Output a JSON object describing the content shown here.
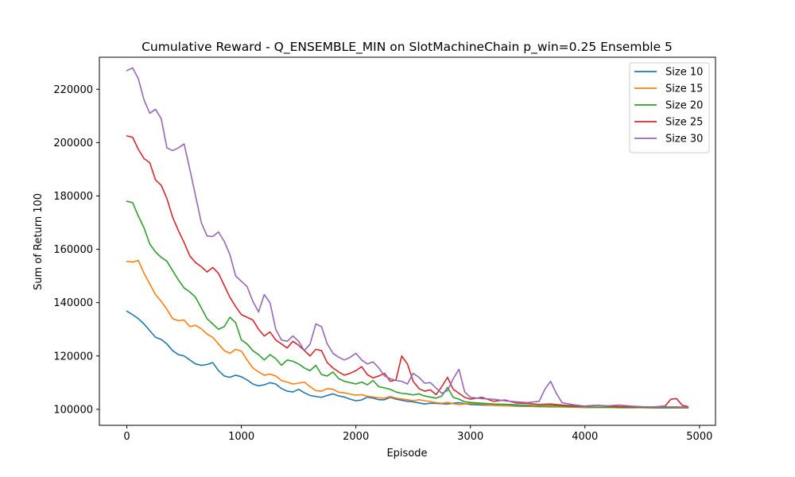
{
  "chart_data": {
    "type": "line",
    "title": "Cumulative Reward - Q_ENSEMBLE_MIN on SlotMachineChain p_win=0.25 Ensemble 5",
    "xlabel": "Episode",
    "ylabel": "Sum of Return 100",
    "xlim": [
      -240,
      5140
    ],
    "ylim": [
      94000,
      232000
    ],
    "xticks": [
      0,
      1000,
      2000,
      3000,
      4000,
      5000
    ],
    "yticks": [
      100000,
      120000,
      140000,
      160000,
      180000,
      200000,
      220000
    ],
    "grid": false,
    "legend_position": "top-right",
    "series": [
      {
        "name": "Size 10",
        "color": "#1f77b4",
        "x": [
          0,
          50,
          100,
          150,
          200,
          250,
          300,
          350,
          400,
          450,
          500,
          550,
          600,
          650,
          700,
          750,
          800,
          850,
          900,
          950,
          1000,
          1050,
          1100,
          1150,
          1200,
          1250,
          1300,
          1350,
          1400,
          1450,
          1500,
          1550,
          1600,
          1650,
          1700,
          1750,
          1800,
          1850,
          1900,
          1950,
          2000,
          2050,
          2100,
          2150,
          2200,
          2250,
          2300,
          2350,
          2400,
          2450,
          2500,
          2550,
          2600,
          2650,
          2700,
          2750,
          2800,
          2850,
          2900,
          2950,
          3000,
          3100,
          3200,
          3300,
          3400,
          3500,
          3600,
          3700,
          3800,
          3900,
          4000,
          4100,
          4200,
          4300,
          4400,
          4500,
          4600,
          4700,
          4800,
          4900
        ],
        "values": [
          136800,
          135500,
          134000,
          132000,
          129500,
          127000,
          126200,
          124500,
          122000,
          120500,
          120000,
          118500,
          117000,
          116500,
          116800,
          117500,
          114500,
          112500,
          112000,
          112800,
          112200,
          111000,
          109500,
          108800,
          109200,
          110000,
          109500,
          107800,
          106800,
          106500,
          107500,
          106200,
          105200,
          104800,
          104500,
          105200,
          105800,
          105000,
          104600,
          103800,
          103200,
          103500,
          104600,
          104200,
          103600,
          103600,
          104500,
          103800,
          103400,
          103000,
          102800,
          102400,
          102000,
          102300,
          102200,
          102100,
          102000,
          102300,
          102500,
          102100,
          101800,
          101600,
          101500,
          101400,
          101200,
          101100,
          101000,
          100900,
          100900,
          100800,
          100700,
          100700,
          100700,
          100600,
          100600,
          100700,
          100600,
          100500,
          100600,
          100600
        ]
      },
      {
        "name": "Size 15",
        "color": "#ff7f0e",
        "x": [
          0,
          50,
          100,
          150,
          200,
          250,
          300,
          350,
          400,
          450,
          500,
          550,
          600,
          650,
          700,
          750,
          800,
          850,
          900,
          950,
          1000,
          1050,
          1100,
          1150,
          1200,
          1250,
          1300,
          1350,
          1400,
          1450,
          1500,
          1550,
          1600,
          1650,
          1700,
          1750,
          1800,
          1850,
          1900,
          1950,
          2000,
          2050,
          2100,
          2150,
          2200,
          2250,
          2300,
          2350,
          2400,
          2450,
          2500,
          2550,
          2600,
          2650,
          2700,
          2750,
          2800,
          2850,
          2900,
          2950,
          3000,
          3100,
          3200,
          3300,
          3400,
          3500,
          3600,
          3700,
          3800,
          3900,
          4000,
          4100,
          4200,
          4300,
          4400,
          4500,
          4600,
          4700,
          4800,
          4900
        ],
        "values": [
          155500,
          155200,
          155800,
          151000,
          147000,
          143000,
          140500,
          137500,
          134000,
          133200,
          133500,
          131000,
          131500,
          130200,
          128200,
          127000,
          124500,
          122000,
          121000,
          122500,
          121800,
          118500,
          115500,
          114000,
          112800,
          113200,
          112500,
          110800,
          110200,
          109500,
          109800,
          110200,
          108500,
          107000,
          106800,
          107800,
          107500,
          106400,
          106200,
          105700,
          105300,
          105500,
          104900,
          104600,
          104300,
          104200,
          104800,
          104200,
          103900,
          103600,
          103200,
          103600,
          103200,
          102900,
          102500,
          102300,
          102600,
          102100,
          101800,
          102000,
          102200,
          102000,
          101500,
          101300,
          101500,
          101200,
          101000,
          101000,
          100900,
          100800,
          100800,
          100700,
          100700,
          100600,
          100600,
          100600,
          100500,
          100600,
          100500,
          100500
        ]
      },
      {
        "name": "Size 20",
        "color": "#2ca02c",
        "x": [
          0,
          50,
          100,
          150,
          200,
          250,
          300,
          350,
          400,
          450,
          500,
          550,
          600,
          650,
          700,
          750,
          800,
          850,
          900,
          950,
          1000,
          1050,
          1100,
          1150,
          1200,
          1250,
          1300,
          1350,
          1400,
          1450,
          1500,
          1550,
          1600,
          1650,
          1700,
          1750,
          1800,
          1850,
          1900,
          1950,
          2000,
          2050,
          2100,
          2150,
          2200,
          2250,
          2300,
          2350,
          2400,
          2450,
          2500,
          2550,
          2600,
          2650,
          2700,
          2750,
          2800,
          2850,
          2900,
          2950,
          3000,
          3100,
          3200,
          3300,
          3400,
          3500,
          3600,
          3700,
          3800,
          3900,
          4000,
          4100,
          4200,
          4300,
          4400,
          4500,
          4600,
          4700,
          4800,
          4900
        ],
        "values": [
          178000,
          177500,
          172500,
          168000,
          162000,
          159000,
          157000,
          155500,
          152000,
          148500,
          145500,
          144000,
          142000,
          138000,
          134000,
          132000,
          130000,
          131000,
          134500,
          132500,
          126000,
          124500,
          122000,
          120500,
          118500,
          120500,
          119000,
          116500,
          118500,
          118000,
          117000,
          115500,
          114500,
          116500,
          113000,
          112500,
          114000,
          111500,
          110500,
          110000,
          109500,
          110200,
          109200,
          110800,
          108500,
          108000,
          107500,
          106500,
          106000,
          105800,
          105400,
          105800,
          105000,
          104600,
          104200,
          105000,
          108200,
          104500,
          103800,
          102800,
          102600,
          102300,
          102000,
          101900,
          101700,
          101500,
          101200,
          101400,
          101200,
          101000,
          101000,
          100800,
          100800,
          100700,
          100700,
          100700,
          100600,
          100600,
          100700,
          100600
        ]
      },
      {
        "name": "Size 25",
        "color": "#d62728",
        "x": [
          0,
          50,
          100,
          150,
          200,
          250,
          300,
          350,
          400,
          450,
          500,
          550,
          600,
          650,
          700,
          750,
          800,
          850,
          900,
          950,
          1000,
          1050,
          1100,
          1150,
          1200,
          1250,
          1300,
          1350,
          1400,
          1450,
          1500,
          1550,
          1600,
          1650,
          1700,
          1750,
          1800,
          1850,
          1900,
          1950,
          2000,
          2050,
          2100,
          2150,
          2200,
          2250,
          2300,
          2350,
          2400,
          2450,
          2500,
          2550,
          2600,
          2650,
          2700,
          2750,
          2800,
          2850,
          2900,
          2950,
          3000,
          3100,
          3200,
          3300,
          3400,
          3500,
          3600,
          3700,
          3800,
          3900,
          4000,
          4100,
          4200,
          4300,
          4400,
          4500,
          4600,
          4700,
          4750,
          4800,
          4850,
          4900
        ],
        "values": [
          202500,
          202000,
          197500,
          194000,
          192500,
          186000,
          184000,
          179000,
          172000,
          167000,
          162500,
          157500,
          155000,
          153500,
          151500,
          153200,
          151000,
          146500,
          142000,
          138500,
          135500,
          134500,
          133500,
          130000,
          127500,
          129000,
          126000,
          124500,
          123000,
          125500,
          124000,
          122000,
          120000,
          122500,
          122000,
          117500,
          115500,
          114000,
          112800,
          113500,
          114500,
          116000,
          113000,
          111800,
          112500,
          113500,
          110500,
          111000,
          120000,
          117000,
          110500,
          107800,
          106800,
          107300,
          105500,
          108500,
          112000,
          107500,
          106000,
          104500,
          103800,
          104500,
          103000,
          103500,
          102400,
          102200,
          101800,
          102000,
          101600,
          101300,
          101200,
          101500,
          101200,
          101000,
          101000,
          100900,
          100900,
          101200,
          103800,
          104000,
          101500,
          101000
        ]
      },
      {
        "name": "Size 30",
        "color": "#9467bd",
        "x": [
          0,
          50,
          100,
          150,
          200,
          250,
          300,
          350,
          400,
          450,
          500,
          550,
          600,
          650,
          700,
          750,
          800,
          850,
          900,
          950,
          1000,
          1050,
          1100,
          1150,
          1200,
          1250,
          1300,
          1350,
          1400,
          1450,
          1500,
          1550,
          1600,
          1650,
          1700,
          1750,
          1800,
          1850,
          1900,
          1950,
          2000,
          2050,
          2100,
          2150,
          2200,
          2250,
          2300,
          2350,
          2400,
          2450,
          2500,
          2550,
          2600,
          2650,
          2700,
          2750,
          2800,
          2850,
          2900,
          2950,
          3000,
          3100,
          3200,
          3300,
          3400,
          3500,
          3600,
          3650,
          3700,
          3750,
          3800,
          3900,
          4000,
          4100,
          4200,
          4300,
          4400,
          4500,
          4600,
          4700,
          4800,
          4900
        ],
        "values": [
          227000,
          228000,
          224000,
          216000,
          211000,
          212500,
          209000,
          198000,
          197000,
          198000,
          199500,
          190000,
          180000,
          170000,
          165000,
          164800,
          166500,
          163000,
          158000,
          150000,
          148000,
          146000,
          140500,
          136500,
          143000,
          140000,
          130000,
          126000,
          125500,
          127500,
          125500,
          122000,
          124500,
          132000,
          131000,
          124500,
          121000,
          119500,
          118500,
          119500,
          121000,
          118500,
          117000,
          117800,
          115500,
          112500,
          111500,
          110800,
          110500,
          109500,
          113500,
          112000,
          109800,
          110000,
          108000,
          106000,
          107000,
          111500,
          115000,
          106500,
          104500,
          104000,
          103800,
          103200,
          102800,
          102500,
          103000,
          107500,
          110500,
          106000,
          102500,
          101700,
          101200,
          101500,
          101300,
          101600,
          101200,
          101000,
          100900,
          100900,
          100900,
          100800
        ]
      }
    ]
  }
}
